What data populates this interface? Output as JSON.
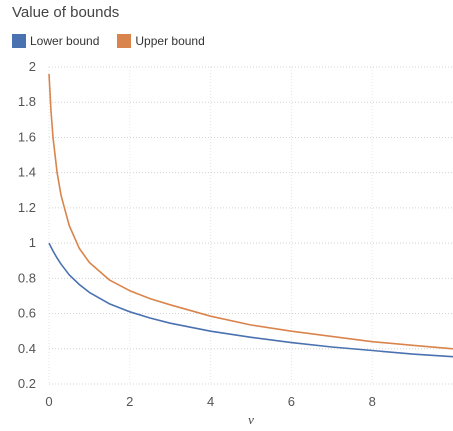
{
  "chart_data": {
    "type": "line",
    "title": "Value of bounds",
    "xlabel": "ν",
    "ylabel": "",
    "xlim": [
      0,
      10
    ],
    "ylim": [
      0.2,
      2.0
    ],
    "xticks": [
      "0",
      "2",
      "4",
      "6",
      "8"
    ],
    "yticks": [
      "0.2",
      "0.4",
      "0.6",
      "0.8",
      "1",
      "1.2",
      "1.4",
      "1.6",
      "1.8",
      "2"
    ],
    "grid": true,
    "legend_position": "top-left",
    "series": [
      {
        "name": "Lower bound",
        "color": "#4a72b0",
        "x": [
          0,
          0.1,
          0.2,
          0.3,
          0.5,
          0.75,
          1,
          1.5,
          2,
          2.5,
          3,
          4,
          5,
          6,
          7,
          8,
          9,
          10
        ],
        "y": [
          1.0,
          0.955,
          0.915,
          0.88,
          0.82,
          0.765,
          0.72,
          0.655,
          0.61,
          0.575,
          0.545,
          0.5,
          0.465,
          0.435,
          0.41,
          0.39,
          0.37,
          0.355
        ]
      },
      {
        "name": "Upper bound",
        "color": "#d9844c",
        "x": [
          0,
          0.05,
          0.1,
          0.2,
          0.3,
          0.5,
          0.75,
          1,
          1.5,
          2,
          2.5,
          3,
          4,
          5,
          6,
          7,
          8,
          9,
          10
        ],
        "y": [
          1.96,
          1.75,
          1.6,
          1.4,
          1.27,
          1.1,
          0.97,
          0.89,
          0.79,
          0.73,
          0.685,
          0.65,
          0.585,
          0.535,
          0.5,
          0.47,
          0.44,
          0.42,
          0.4
        ]
      }
    ]
  }
}
